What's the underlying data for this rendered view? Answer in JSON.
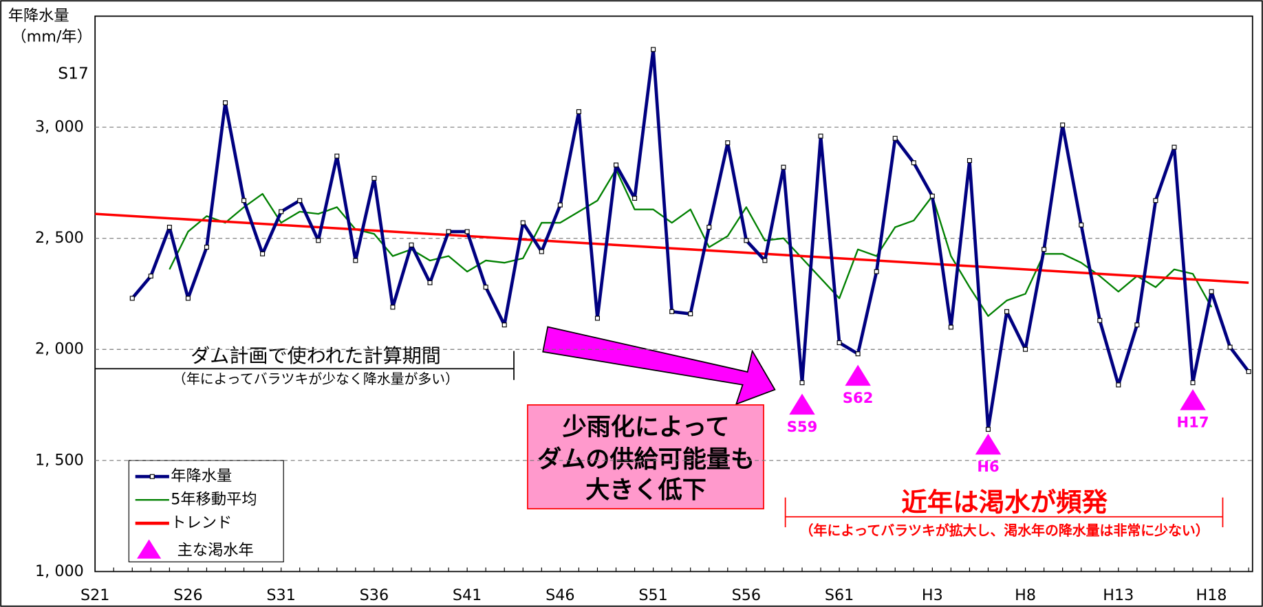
{
  "chart_data": {
    "type": "line",
    "y_axis_label": [
      "年降水量",
      "（mm/年）"
    ],
    "categories": [
      "S21",
      null,
      null,
      null,
      null,
      "S26",
      null,
      null,
      null,
      null,
      "S31",
      null,
      null,
      null,
      null,
      "S36",
      null,
      null,
      null,
      null,
      "S41",
      null,
      null,
      null,
      null,
      "S46",
      null,
      null,
      null,
      null,
      "S51",
      null,
      null,
      null,
      null,
      "S56",
      null,
      null,
      null,
      null,
      "S61",
      null,
      null,
      null,
      null,
      "H3",
      null,
      null,
      null,
      null,
      "H8",
      null,
      null,
      null,
      null,
      "H13",
      null,
      null,
      null,
      null,
      "H18",
      null,
      null
    ],
    "series": [
      {
        "name": "年降水量",
        "color": "#000080",
        "markers": true,
        "values": [
          null,
          null,
          2230,
          2330,
          2550,
          2230,
          2460,
          3110,
          2670,
          2430,
          2620,
          2670,
          2490,
          2870,
          2400,
          2770,
          2190,
          2470,
          2300,
          2530,
          2530,
          2280,
          2110,
          2570,
          2440,
          2650,
          3070,
          2140,
          2830,
          2680,
          3350,
          2170,
          2160,
          2550,
          2930,
          2490,
          2400,
          2820,
          1850,
          2960,
          2030,
          1980,
          2350,
          2950,
          2840,
          2690,
          2100,
          2850,
          1640,
          2170,
          2000,
          2450,
          3010,
          2560,
          2130,
          1840,
          2110,
          2670,
          2910,
          1850,
          2260,
          2010,
          1900
        ]
      },
      {
        "name": "5年移動平均",
        "color": "#008000",
        "markers": false,
        "values": [
          null,
          null,
          null,
          null,
          2360,
          2530,
          2600,
          2570,
          2640,
          2700,
          2570,
          2620,
          2610,
          2640,
          2540,
          2520,
          2420,
          2450,
          2400,
          2420,
          2350,
          2400,
          2390,
          2410,
          2570,
          2570,
          2620,
          2670,
          2810,
          2630,
          2630,
          2570,
          2630,
          2460,
          2510,
          2640,
          2490,
          2500,
          2410,
          2320,
          2230,
          2450,
          2420,
          2550,
          2580,
          2690,
          2420,
          2280,
          2150,
          2220,
          2250,
          2430,
          2430,
          2390,
          2330,
          2260,
          2330,
          2280,
          2360,
          2340,
          2190,
          null,
          null
        ]
      },
      {
        "name": "トレンド",
        "color": "#ff0000",
        "markers": false,
        "values": [
          2610,
          2605,
          2600,
          2595,
          2590,
          2585,
          2580,
          2575,
          2570,
          2565,
          2560,
          2555,
          2550,
          2545,
          2540,
          2535,
          2530,
          2525,
          2520,
          2515,
          2510,
          2505,
          2500,
          2495,
          2490,
          2485,
          2480,
          2475,
          2470,
          2465,
          2460,
          2455,
          2450,
          2445,
          2440,
          2435,
          2430,
          2425,
          2420,
          2415,
          2410,
          2405,
          2400,
          2395,
          2390,
          2385,
          2380,
          2375,
          2370,
          2365,
          2360,
          2355,
          2350,
          2345,
          2340,
          2335,
          2330,
          2325,
          2320,
          2315,
          2310,
          2305,
          2300
        ]
      }
    ],
    "drought": {
      "name": "主な渇水年",
      "color": "#ff00ff",
      "values": [
        null,
        null,
        null,
        null,
        null,
        null,
        null,
        null,
        null,
        null,
        null,
        null,
        null,
        null,
        null,
        null,
        null,
        null,
        null,
        null,
        null,
        null,
        null,
        null,
        null,
        null,
        null,
        null,
        null,
        null,
        null,
        null,
        null,
        null,
        null,
        null,
        null,
        null,
        1750,
        null,
        null,
        1880,
        null,
        null,
        null,
        null,
        null,
        null,
        1570,
        null,
        null,
        null,
        null,
        null,
        null,
        null,
        null,
        null,
        null,
        1770,
        null,
        null,
        null
      ],
      "labels": [
        null,
        null,
        null,
        null,
        null,
        null,
        null,
        null,
        null,
        null,
        null,
        null,
        null,
        null,
        null,
        null,
        null,
        null,
        null,
        null,
        null,
        null,
        null,
        null,
        null,
        null,
        null,
        null,
        null,
        null,
        null,
        null,
        null,
        null,
        null,
        null,
        null,
        null,
        "S59",
        null,
        null,
        "S62",
        null,
        null,
        null,
        null,
        null,
        null,
        "H6",
        null,
        null,
        null,
        null,
        null,
        null,
        null,
        null,
        null,
        null,
        "H17",
        null,
        null,
        null
      ]
    },
    "ylim": [
      1000,
      3500
    ],
    "yticks": [
      {
        "value": 1000,
        "label": "1, 000"
      },
      {
        "value": 1500,
        "label": "1, 500"
      },
      {
        "value": 2000,
        "label": "2, 000"
      },
      {
        "value": 2500,
        "label": "2, 500"
      },
      {
        "value": 3000,
        "label": "3, 000"
      }
    ],
    "grid": true,
    "annotations": {
      "record": "S17",
      "period_title": "ダム計画で使われた計算期間",
      "period_note": "（年によってバラツキが少なく降水量が多い）",
      "box_lines": [
        "少雨化によって",
        "ダムの供給可能量も",
        "大きく低下"
      ],
      "recent_title": "近年は渇水が頻発",
      "recent_note": "（年によってバラツキが拡大し、渇水年の降水量は非常に少ない）"
    }
  }
}
